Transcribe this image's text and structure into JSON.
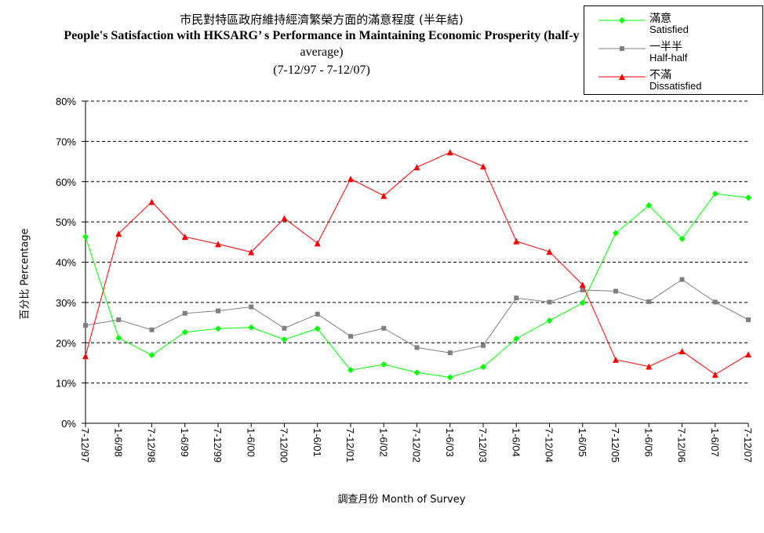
{
  "title": {
    "line1": "市民對特區政府維持經濟繁榮方面的滿意程度 (半年結)",
    "line2": "People's Satisfaction with HKSARG’ s Performance in Maintaining Economic Prosperity (half-y",
    "line3": "average)",
    "line4": "(7-12/97 - 7-12/07)"
  },
  "chart_data": {
    "type": "line",
    "ylabel": "百分比 Percentage",
    "xlabel": "調查月份 Month of Survey",
    "ylim": [
      0,
      80
    ],
    "yticks": [
      "0%",
      "10%",
      "20%",
      "30%",
      "40%",
      "50%",
      "60%",
      "70%",
      "80%"
    ],
    "grid": "horizontal dashed",
    "legend_position": "top-right",
    "categories": [
      "7-12/97",
      "1-6/98",
      "7-12/98",
      "1-6/99",
      "7-12/99",
      "1-6/00",
      "7-12/00",
      "1-6/01",
      "7-12/01",
      "1-6/02",
      "7-12/02",
      "1-6/03",
      "7-12/03",
      "1-6/04",
      "7-12/04",
      "1-6/05",
      "7-12/05",
      "1-6/06",
      "7-12/06",
      "1-6/07",
      "7-12/07"
    ],
    "series": [
      {
        "name": "滿意",
        "name_en": "Satisfied",
        "color": "#00ff00",
        "marker": "diamond",
        "values": [
          46.3,
          21.2,
          16.9,
          22.6,
          23.5,
          23.8,
          20.8,
          23.5,
          13.2,
          14.6,
          12.6,
          11.4,
          14.0,
          21.0,
          25.5,
          29.9,
          47.2,
          54.1,
          45.8,
          57.0,
          56.0
        ]
      },
      {
        "name": "一半半",
        "name_en": "Half-half",
        "color": "#808080",
        "marker": "square",
        "values": [
          24.3,
          25.7,
          23.2,
          27.3,
          27.9,
          28.9,
          23.6,
          27.1,
          21.6,
          23.6,
          18.8,
          17.5,
          19.3,
          31.1,
          30.1,
          33.1,
          32.8,
          30.2,
          35.7,
          30.1,
          25.7
        ]
      },
      {
        "name": "不滿",
        "name_en": "Dissatisfied",
        "color": "#ff0000",
        "marker": "triangle",
        "values": [
          16.7,
          47.1,
          55.0,
          46.3,
          44.5,
          42.5,
          50.9,
          44.7,
          60.7,
          56.5,
          63.6,
          67.3,
          63.8,
          45.2,
          42.6,
          34.4,
          15.8,
          14.1,
          17.9,
          12.1,
          17.1
        ]
      }
    ]
  }
}
